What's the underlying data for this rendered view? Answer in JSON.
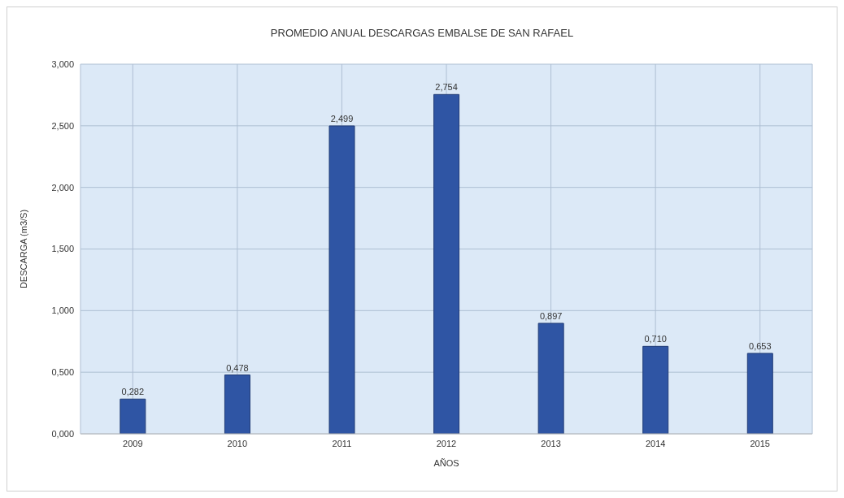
{
  "chart_data": {
    "type": "bar",
    "title": "PROMEDIO ANUAL DESCARGAS EMBALSE DE SAN RAFAEL",
    "xlabel": "AÑOS",
    "ylabel": "DESCARGA (m3/S)",
    "categories": [
      "2009",
      "2010",
      "2011",
      "2012",
      "2013",
      "2014",
      "2015"
    ],
    "values": [
      0.282,
      0.478,
      2.499,
      2.754,
      0.897,
      0.71,
      0.653
    ],
    "value_labels": [
      "0,282",
      "0,478",
      "2,499",
      "2,754",
      "0,897",
      "0,710",
      "0,653"
    ],
    "color": "#2f55a4",
    "ylim": [
      0,
      3
    ],
    "yticks": [
      {
        "value": 0,
        "label": "0,000"
      },
      {
        "value": 0.5,
        "label": "0,500"
      },
      {
        "value": 1,
        "label": "1,000"
      },
      {
        "value": 1.5,
        "label": "1,500"
      },
      {
        "value": 2,
        "label": "2,000"
      },
      {
        "value": 2.5,
        "label": "2,500"
      },
      {
        "value": 3,
        "label": "3,000"
      }
    ],
    "grid": true
  }
}
